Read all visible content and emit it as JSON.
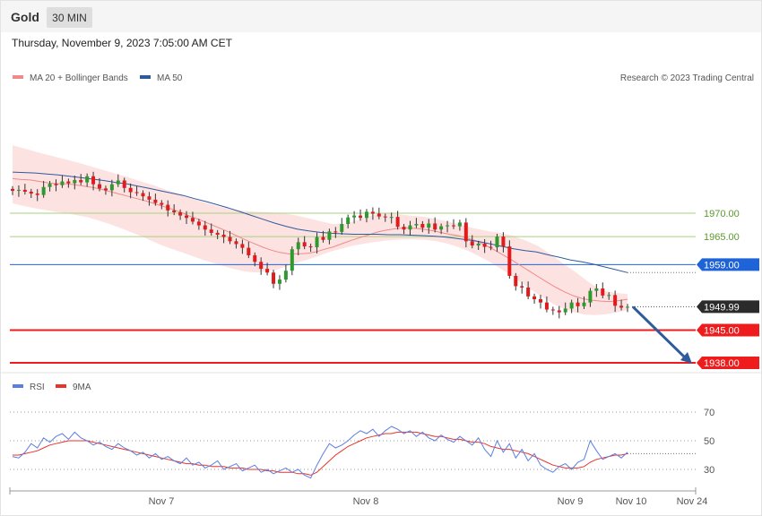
{
  "header": {
    "title": "Gold",
    "timeframe": "30 MIN",
    "timestamp": "Thursday, November 9, 2023 7:05:00 AM CET"
  },
  "price_panel": {
    "legend": [
      {
        "label": "MA 20 + Bollinger Bands",
        "color": "#f08a8a"
      },
      {
        "label": "MA 50",
        "color": "#2f5a9c"
      }
    ],
    "credit": "Research © 2023 Trading Central"
  },
  "rsi_panel": {
    "legend": [
      {
        "label": "RSI",
        "color": "#5b7fe0"
      },
      {
        "label": "9MA",
        "color": "#e8332a"
      }
    ]
  },
  "colors": {
    "up_candle": "#2e9a2e",
    "down_candle": "#e11b1b",
    "bollinger_fill": "#fde2e2",
    "ma20": "#f08a8a",
    "ma50": "#2f5a9c",
    "resistance_line": "#a7d27c",
    "pivot_line": "#1e63d8",
    "support_line": "#ee1c1c",
    "current_price_bg": "#2b2b2b",
    "arrow": "#2f5a9c"
  },
  "chart_data": [
    {
      "type": "candlestick",
      "title": "Gold",
      "timeframe": "30 MIN",
      "x_ticks": [
        "Nov 7",
        "Nov 8",
        "Nov 9",
        "Nov 10",
        "Nov 24"
      ],
      "y_range": [
        1932,
        1980
      ],
      "levels": [
        {
          "value": 1970.0,
          "label": "1970.00",
          "kind": "resistance"
        },
        {
          "value": 1965.0,
          "label": "1965.00",
          "kind": "resistance"
        },
        {
          "value": 1959.0,
          "label": "1959.00",
          "kind": "pivot"
        },
        {
          "value": 1949.99,
          "label": "1949.99",
          "kind": "last_price"
        },
        {
          "value": 1945.0,
          "label": "1945.00",
          "kind": "support"
        },
        {
          "value": 1938.0,
          "label": "1938.00",
          "kind": "support"
        }
      ],
      "close_series": [
        1974.8,
        1975.0,
        1974.6,
        1974.2,
        1973.9,
        1975.6,
        1976.3,
        1976.0,
        1976.8,
        1976.4,
        1977.1,
        1976.6,
        1977.9,
        1976.2,
        1975.3,
        1974.9,
        1976.2,
        1977.0,
        1975.4,
        1974.5,
        1974.3,
        1973.6,
        1972.9,
        1972.2,
        1971.8,
        1970.6,
        1970.2,
        1969.5,
        1969.0,
        1968.2,
        1967.4,
        1966.5,
        1965.8,
        1965.4,
        1964.9,
        1964.0,
        1963.4,
        1962.6,
        1961.0,
        1959.6,
        1958.1,
        1957.3,
        1954.9,
        1955.8,
        1957.7,
        1962.3,
        1963.8,
        1962.9,
        1962.7,
        1964.9,
        1964.3,
        1966.1,
        1966.0,
        1967.7,
        1969.1,
        1969.5,
        1969.0,
        1970.3,
        1969.9,
        1969.3,
        1969.1,
        1969.2,
        1967.1,
        1966.5,
        1967.4,
        1967.7,
        1966.9,
        1967.8,
        1966.5,
        1967.2,
        1967.4,
        1967.2,
        1968.0,
        1964.0,
        1963.1,
        1963.5,
        1962.8,
        1962.7,
        1965.0,
        1962.9,
        1956.6,
        1954.4,
        1954.1,
        1952.2,
        1951.6,
        1950.9,
        1949.4,
        1949.2,
        1948.8,
        1949.6,
        1950.9,
        1950.1,
        1950.9,
        1953.4,
        1953.9,
        1952.4,
        1952.5,
        1950.2,
        1949.8,
        1949.99
      ],
      "ma20": [
        1977.4,
        1977.2,
        1977.1,
        1976.8,
        1976.5,
        1976.3,
        1976.3,
        1976.1,
        1975.8,
        1975.5,
        1975.1,
        1974.6,
        1974.1,
        1973.6,
        1973.1,
        1972.6,
        1972.0,
        1971.4,
        1970.8,
        1970.1,
        1969.3,
        1968.6,
        1967.8,
        1967.0,
        1966.2,
        1965.3,
        1964.4,
        1963.6,
        1962.8,
        1962.1,
        1961.6,
        1961.3,
        1961.3,
        1961.4,
        1961.7,
        1962.3,
        1962.8,
        1963.5,
        1964.2,
        1964.8,
        1965.4,
        1966.0,
        1966.4,
        1966.7,
        1966.9,
        1966.8,
        1966.6,
        1966.3,
        1965.9,
        1965.5,
        1965.2,
        1964.7,
        1964.1,
        1963.2,
        1962.2,
        1961.1,
        1960.0,
        1958.8,
        1957.6,
        1956.4,
        1955.2,
        1954.1,
        1953.1,
        1952.3,
        1951.7,
        1951.4,
        1951.2,
        1951.1,
        1951.3,
        1951.6
      ],
      "ma50": [
        1978.8,
        1978.7,
        1978.6,
        1978.4,
        1978.2,
        1977.9,
        1977.6,
        1977.3,
        1977.0,
        1976.6,
        1976.3,
        1975.8,
        1975.3,
        1974.8,
        1974.3,
        1973.8,
        1973.1,
        1972.5,
        1971.8,
        1971.1,
        1970.3,
        1969.5,
        1968.7,
        1967.9,
        1967.2,
        1966.6,
        1966.2,
        1965.9,
        1965.7,
        1965.6,
        1965.5,
        1965.5,
        1965.5,
        1965.4,
        1965.4,
        1965.3,
        1965.2,
        1965.1,
        1964.9,
        1964.6,
        1964.3,
        1963.9,
        1963.4,
        1962.9,
        1962.4,
        1962.0,
        1961.7,
        1961.1,
        1960.6,
        1960.0,
        1959.6,
        1959.1,
        1958.5,
        1957.9,
        1957.3
      ],
      "bb_upper": [
        1984.5,
        1983.8,
        1983.0,
        1982.3,
        1981.6,
        1980.9,
        1980.1,
        1979.3,
        1978.5,
        1977.7,
        1976.8,
        1976.0,
        1975.0,
        1974.1,
        1973.2,
        1972.3,
        1971.5,
        1970.9,
        1970.5,
        1970.3,
        1970.2,
        1970.0,
        1969.6,
        1969.0,
        1968.3,
        1967.7,
        1967.7,
        1968.6,
        1969.5,
        1970.0,
        1969.8,
        1969.5,
        1969.3,
        1968.8,
        1968.2,
        1967.5,
        1966.8,
        1966.2,
        1965.8,
        1965.2,
        1964.2,
        1963.0,
        1961.2,
        1959.2,
        1957.3,
        1955.2,
        1953.5,
        1953.0,
        1952.7
      ],
      "bb_lower": [
        1972.1,
        1971.6,
        1971.1,
        1970.7,
        1970.3,
        1970.0,
        1969.6,
        1969.2,
        1968.5,
        1967.8,
        1967.0,
        1966.1,
        1965.2,
        1964.2,
        1963.2,
        1962.4,
        1961.6,
        1960.8,
        1960.0,
        1959.3,
        1958.6,
        1958.0,
        1957.5,
        1957.3,
        1957.6,
        1958.0,
        1958.8,
        1959.5,
        1960.2,
        1961.0,
        1961.8,
        1962.4,
        1963.0,
        1963.4,
        1963.8,
        1964.1,
        1964.3,
        1964.4,
        1964.4,
        1964.3,
        1964.0,
        1963.5,
        1962.8,
        1961.9,
        1960.8,
        1959.6,
        1958.2,
        1956.7,
        1955.1,
        1953.5,
        1952.0,
        1950.6,
        1949.5,
        1948.8,
        1948.3,
        1948.2,
        1948.4,
        1948.8,
        1949.3
      ],
      "arrow": {
        "from_value": 1949.99,
        "to_value": 1938.0,
        "direction": "down"
      }
    },
    {
      "type": "line",
      "title": "RSI",
      "y_ticks": [
        30,
        50,
        70
      ],
      "y_range": [
        20,
        80
      ],
      "series": [
        {
          "name": "RSI",
          "values": [
            39,
            38,
            42,
            48,
            45,
            52,
            49,
            53,
            55,
            51,
            56,
            52,
            50,
            47,
            49,
            46,
            44,
            48,
            45,
            43,
            40,
            42,
            38,
            41,
            37,
            39,
            36,
            34,
            38,
            33,
            35,
            31,
            33,
            36,
            30,
            32,
            34,
            29,
            31,
            33,
            28,
            30,
            27,
            29,
            31,
            28,
            30,
            26,
            24,
            33,
            41,
            48,
            45,
            47,
            50,
            54,
            57,
            55,
            58,
            53,
            57,
            60,
            58,
            55,
            57,
            53,
            56,
            52,
            50,
            54,
            51,
            49,
            53,
            50,
            47,
            52,
            44,
            39,
            50,
            42,
            48,
            38,
            44,
            36,
            41,
            33,
            30,
            28,
            32,
            34,
            30,
            35,
            37,
            50,
            43,
            37,
            39,
            41,
            38,
            42
          ]
        },
        {
          "name": "9MA",
          "values": [
            40,
            40,
            41,
            42,
            43,
            45,
            47,
            48,
            49,
            50,
            50,
            50,
            50,
            49,
            48,
            47,
            46,
            45,
            44,
            43,
            42,
            41,
            40,
            39,
            38,
            37,
            36,
            35,
            34,
            34,
            33,
            33,
            32,
            32,
            32,
            31,
            31,
            31,
            30,
            30,
            30,
            29,
            29,
            28,
            28,
            28,
            27,
            27,
            26,
            28,
            32,
            36,
            40,
            43,
            46,
            48,
            50,
            52,
            53,
            54,
            55,
            55,
            56,
            56,
            56,
            56,
            55,
            54,
            53,
            53,
            52,
            51,
            51,
            50,
            49,
            49,
            48,
            46,
            45,
            44,
            44,
            43,
            42,
            41,
            39,
            37,
            35,
            33,
            32,
            31,
            31,
            31,
            32,
            35,
            37,
            38,
            39,
            40,
            40,
            41
          ]
        }
      ]
    }
  ]
}
